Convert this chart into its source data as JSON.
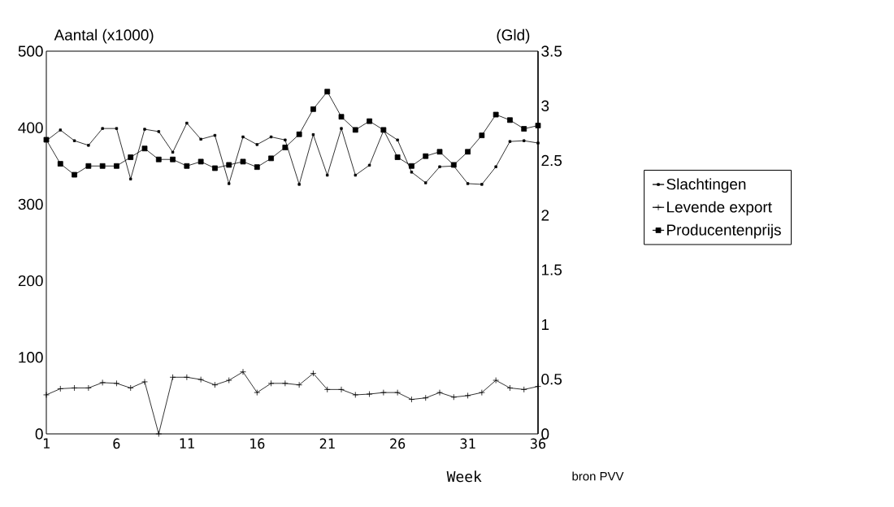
{
  "chart_data": {
    "type": "line",
    "ylabel": "Aantal (x1000)",
    "y2label": "(Gld)",
    "xlabel": "Week",
    "annotations": [
      "bron PVV"
    ],
    "x": [
      1,
      2,
      3,
      4,
      5,
      6,
      7,
      8,
      9,
      10,
      11,
      12,
      13,
      14,
      15,
      16,
      17,
      18,
      19,
      20,
      21,
      22,
      23,
      24,
      25,
      26,
      27,
      28,
      29,
      30,
      31,
      32,
      33,
      34,
      35,
      36
    ],
    "series": [
      {
        "name": "Slachtingen",
        "color": "#000000",
        "marker": "square",
        "values": [
          383,
          397,
          383,
          377,
          399,
          399,
          333,
          398,
          395,
          368,
          406,
          385,
          390,
          327,
          388,
          378,
          388,
          384,
          326,
          391,
          338,
          399,
          338,
          351,
          396,
          384,
          342,
          328,
          349,
          350,
          327,
          326,
          349,
          382,
          383,
          380
        ]
      },
      {
        "name": "Levende export",
        "color": "#000000",
        "marker": "cross",
        "values": [
          51,
          59,
          60,
          60,
          67,
          66,
          60,
          68,
          0,
          74,
          74,
          71,
          64,
          70,
          81,
          54,
          66,
          66,
          64,
          79,
          58,
          58,
          51,
          52,
          54,
          54,
          45,
          47,
          54,
          48,
          50,
          54,
          70,
          60,
          58,
          62
        ]
      },
      {
        "name": "Producentenprijs",
        "color": "#000000",
        "marker": "square",
        "axis": "y2",
        "values": [
          2.69,
          2.47,
          2.37,
          2.45,
          2.45,
          2.45,
          2.53,
          2.61,
          2.51,
          2.51,
          2.45,
          2.49,
          2.43,
          2.46,
          2.49,
          2.44,
          2.52,
          2.62,
          2.74,
          2.97,
          3.13,
          2.9,
          2.78,
          2.86,
          2.78,
          2.53,
          2.45,
          2.54,
          2.58,
          2.46,
          2.58,
          2.73,
          2.92,
          2.87,
          2.79,
          2.82
        ]
      }
    ],
    "xlim": [
      1,
      36
    ],
    "xticks": [
      1,
      6,
      11,
      16,
      21,
      26,
      31,
      36
    ],
    "ylim": [
      0,
      500
    ],
    "yticks": [
      0,
      100,
      200,
      300,
      400,
      500
    ],
    "y2lim": [
      0,
      3.5
    ],
    "y2ticks": [
      0,
      0.5,
      1,
      1.5,
      2,
      2.5,
      3,
      3.5
    ],
    "legend": "right",
    "grid": false
  }
}
